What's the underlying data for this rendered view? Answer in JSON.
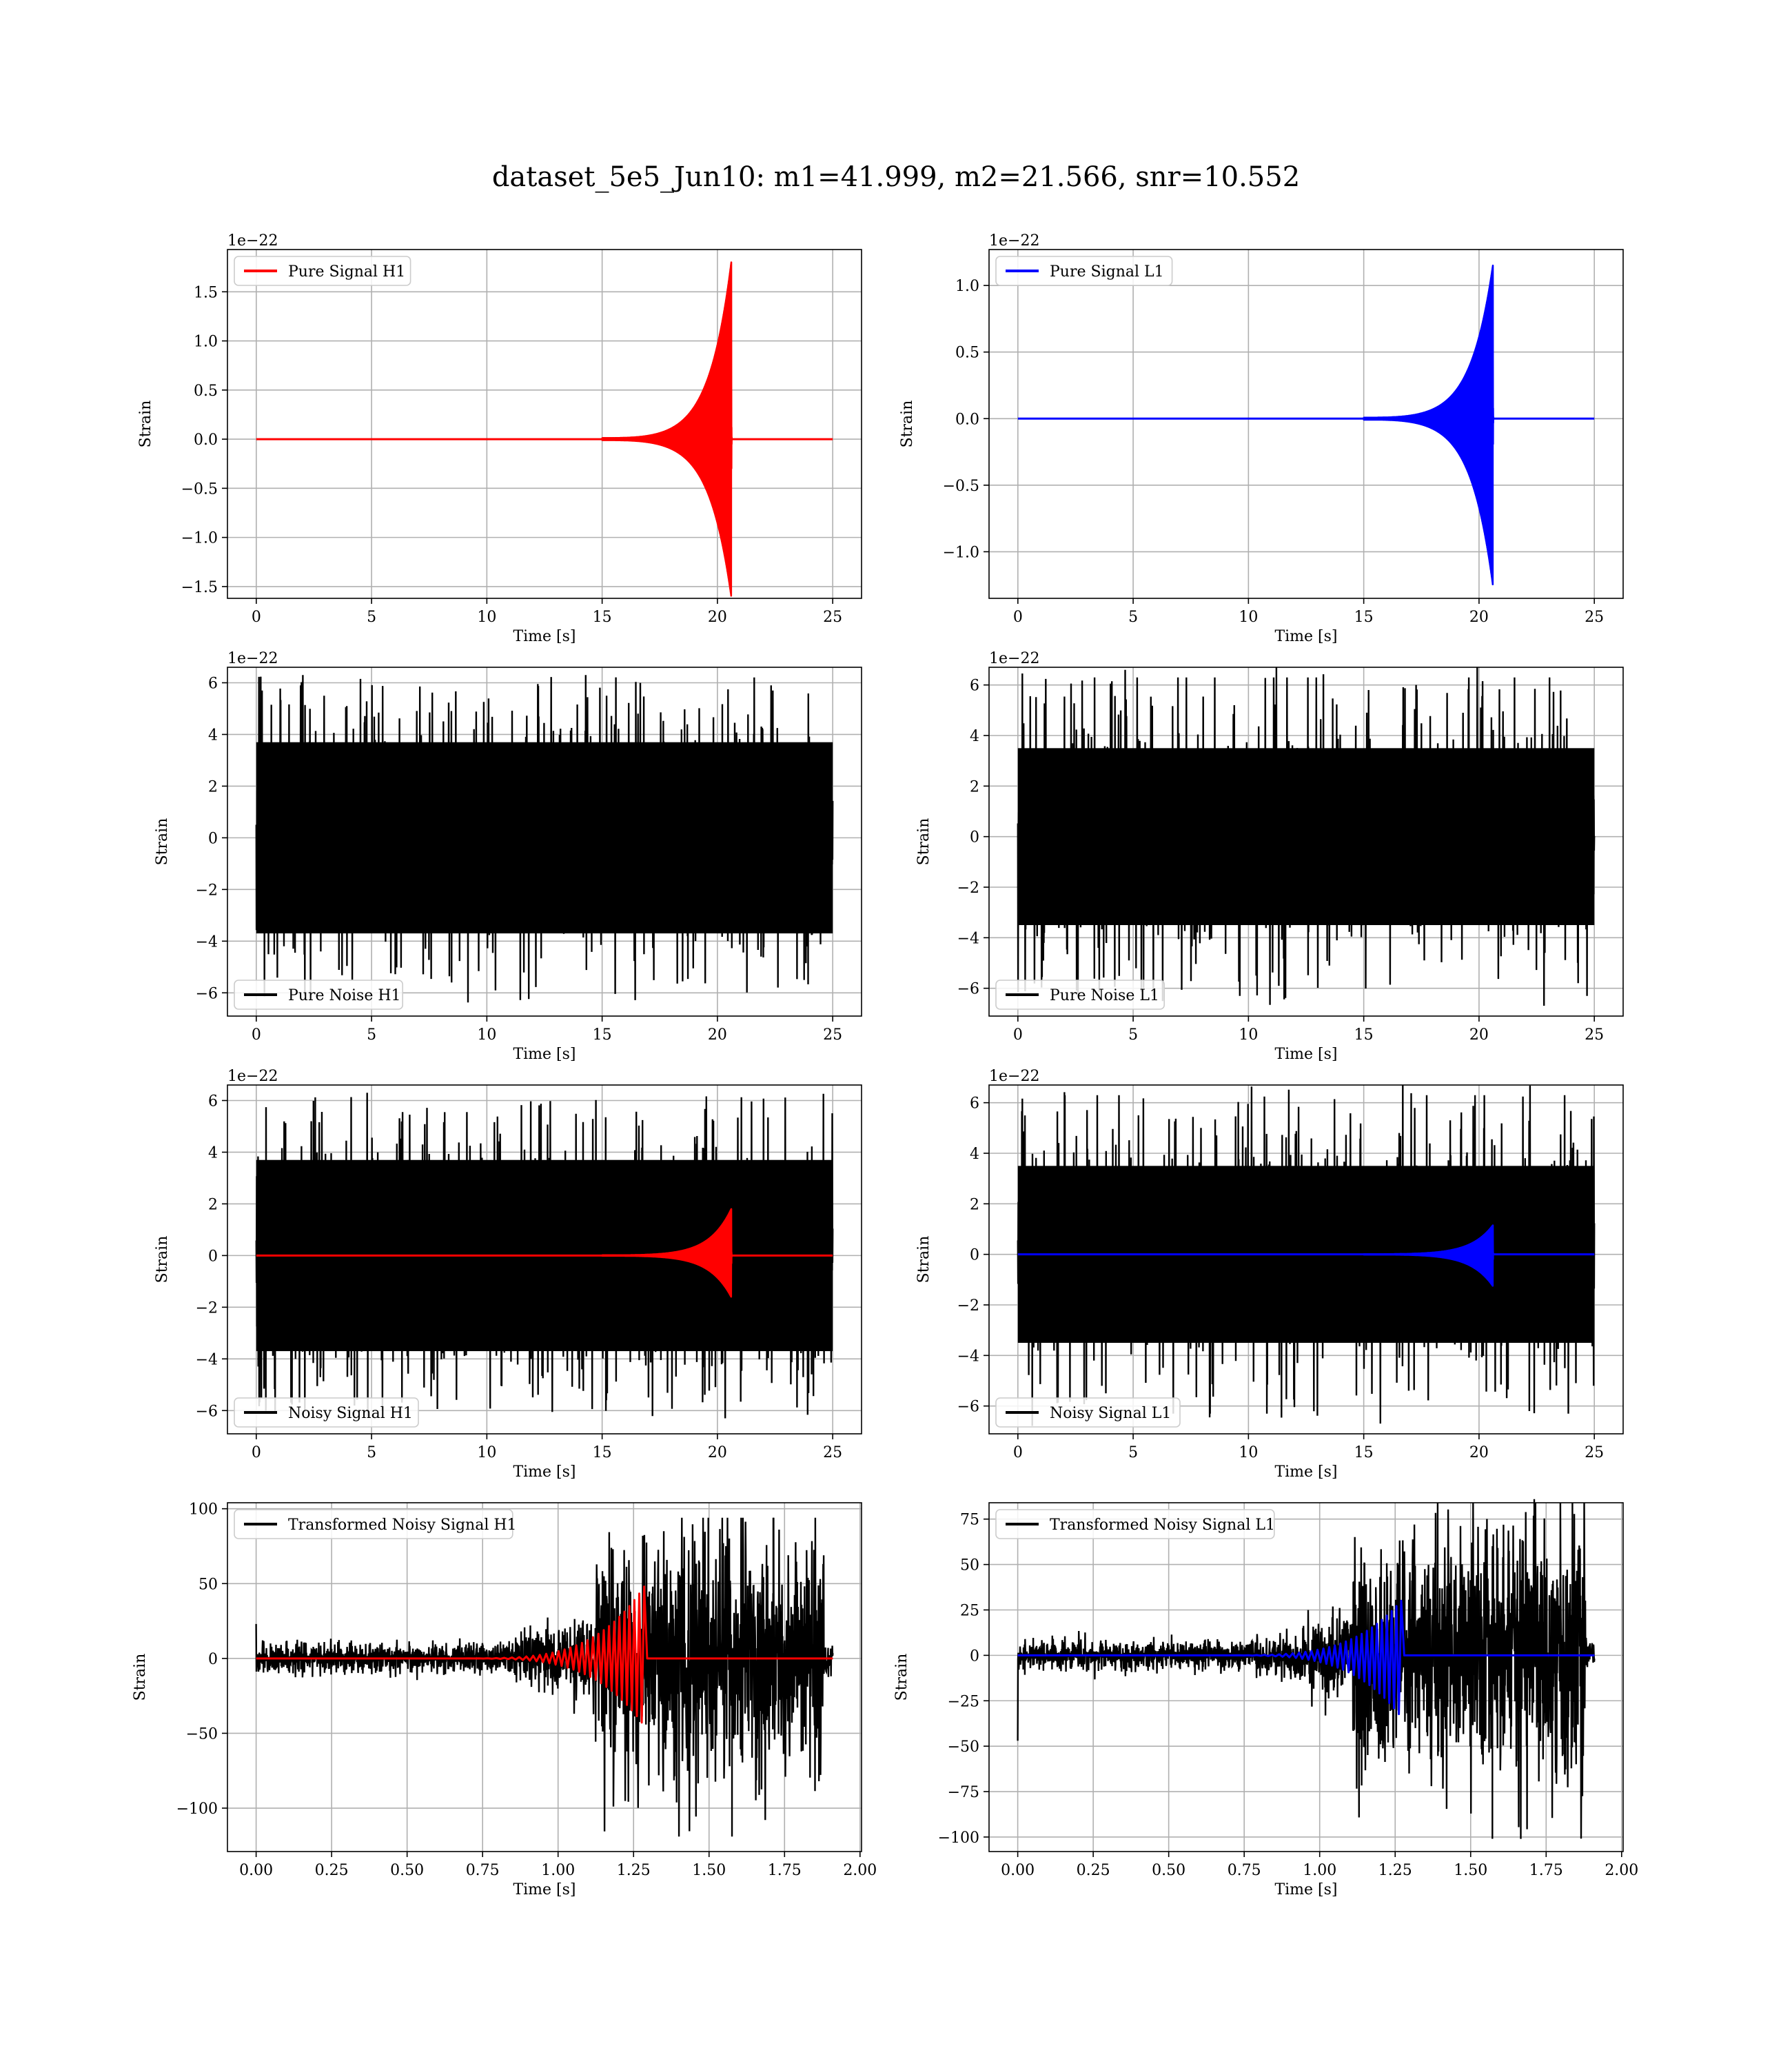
{
  "figure_title": "dataset_5e5_Jun10: m1=41.999, m2=21.566, snr=10.552",
  "colors": {
    "h1_signal": "#ff0000",
    "l1_signal": "#0000ff",
    "noise": "#000000"
  },
  "chart_data": [
    {
      "type": "line",
      "id": "pure-signal-h1",
      "xlabel": "Time [s]",
      "ylabel": "Strain",
      "offset_text": "1e−22",
      "xlim": [
        -1.25,
        26.25
      ],
      "ylim": [
        -1.62,
        1.93
      ],
      "xticks": [
        0,
        5,
        10,
        15,
        20,
        25
      ],
      "xtick_labels": [
        "0",
        "5",
        "10",
        "15",
        "20",
        "25"
      ],
      "yticks": [
        -1.5,
        -1.0,
        -0.5,
        0.0,
        0.5,
        1.0,
        1.5
      ],
      "ytick_labels": [
        "−1.5",
        "−1.0",
        "−0.5",
        "0.0",
        "0.5",
        "1.0",
        "1.5"
      ],
      "grid": true,
      "legend_position": "upper-left",
      "series": [
        {
          "name": "Pure Signal H1",
          "kind": "chirp",
          "color": "#ff0000",
          "x_range": [
            0,
            25
          ],
          "merger_time": 20.6,
          "peak_max": 1.8,
          "peak_min": -1.6,
          "onset_time": 15.0
        }
      ]
    },
    {
      "type": "line",
      "id": "pure-signal-l1",
      "xlabel": "Time [s]",
      "ylabel": "Strain",
      "offset_text": "1e−22",
      "xlim": [
        -1.25,
        26.25
      ],
      "ylim": [
        -1.35,
        1.27
      ],
      "xticks": [
        0,
        5,
        10,
        15,
        20,
        25
      ],
      "xtick_labels": [
        "0",
        "5",
        "10",
        "15",
        "20",
        "25"
      ],
      "yticks": [
        -1.0,
        -0.5,
        0.0,
        0.5,
        1.0
      ],
      "ytick_labels": [
        "−1.0",
        "−0.5",
        "0.0",
        "0.5",
        "1.0"
      ],
      "grid": true,
      "legend_position": "upper-left",
      "series": [
        {
          "name": "Pure Signal L1",
          "kind": "chirp",
          "color": "#0000ff",
          "x_range": [
            0,
            25
          ],
          "merger_time": 20.6,
          "peak_max": 1.15,
          "peak_min": -1.25,
          "onset_time": 15.0
        }
      ]
    },
    {
      "type": "line",
      "id": "pure-noise-h1",
      "xlabel": "Time [s]",
      "ylabel": "Strain",
      "offset_text": "1e−22",
      "xlim": [
        -1.25,
        26.25
      ],
      "ylim": [
        -6.9,
        6.6
      ],
      "xticks": [
        0,
        5,
        10,
        15,
        20,
        25
      ],
      "xtick_labels": [
        "0",
        "5",
        "10",
        "15",
        "20",
        "25"
      ],
      "yticks": [
        -6,
        -4,
        -2,
        0,
        2,
        4,
        6
      ],
      "ytick_labels": [
        "−6",
        "−4",
        "−2",
        "0",
        "2",
        "4",
        "6"
      ],
      "grid": true,
      "legend_position": "lower-left",
      "series": [
        {
          "name": "Pure Noise H1",
          "kind": "noise",
          "color": "#000000",
          "x_range": [
            0,
            25
          ],
          "band": 3.7,
          "spike_max": 6.3,
          "spike_min": -6.4
        }
      ]
    },
    {
      "type": "line",
      "id": "pure-noise-l1",
      "xlabel": "Time [s]",
      "ylabel": "Strain",
      "offset_text": "1e−22",
      "xlim": [
        -1.25,
        26.25
      ],
      "ylim": [
        -7.1,
        6.7
      ],
      "xticks": [
        0,
        5,
        10,
        15,
        20,
        25
      ],
      "xtick_labels": [
        "0",
        "5",
        "10",
        "15",
        "20",
        "25"
      ],
      "yticks": [
        -6,
        -4,
        -2,
        0,
        2,
        4,
        6
      ],
      "ytick_labels": [
        "−6",
        "−4",
        "−2",
        "0",
        "2",
        "4",
        "6"
      ],
      "grid": true,
      "legend_position": "lower-left",
      "series": [
        {
          "name": "Pure Noise L1",
          "kind": "noise",
          "color": "#000000",
          "x_range": [
            0,
            25
          ],
          "band": 3.5,
          "spike_max": 6.3,
          "spike_min": -6.8
        }
      ]
    },
    {
      "type": "line",
      "id": "noisy-signal-h1",
      "xlabel": "Time [s]",
      "ylabel": "Strain",
      "offset_text": "1e−22",
      "xlim": [
        -1.25,
        26.25
      ],
      "ylim": [
        -6.9,
        6.6
      ],
      "xticks": [
        0,
        5,
        10,
        15,
        20,
        25
      ],
      "xtick_labels": [
        "0",
        "5",
        "10",
        "15",
        "20",
        "25"
      ],
      "yticks": [
        -6,
        -4,
        -2,
        0,
        2,
        4,
        6
      ],
      "ytick_labels": [
        "−6",
        "−4",
        "−2",
        "0",
        "2",
        "4",
        "6"
      ],
      "grid": true,
      "legend_position": "lower-left",
      "series": [
        {
          "name": "Noisy Signal H1",
          "kind": "noise",
          "color": "#000000",
          "x_range": [
            0,
            25
          ],
          "band": 3.7,
          "spike_max": 6.3,
          "spike_min": -6.4
        },
        {
          "name": "",
          "kind": "chirp",
          "color": "#ff0000",
          "x_range": [
            0,
            25
          ],
          "merger_time": 20.6,
          "peak_max": 1.8,
          "peak_min": -1.6,
          "onset_time": 15.0
        }
      ]
    },
    {
      "type": "line",
      "id": "noisy-signal-l1",
      "xlabel": "Time [s]",
      "ylabel": "Strain",
      "offset_text": "1e−22",
      "xlim": [
        -1.25,
        26.25
      ],
      "ylim": [
        -7.1,
        6.7
      ],
      "xticks": [
        0,
        5,
        10,
        15,
        20,
        25
      ],
      "xtick_labels": [
        "0",
        "5",
        "10",
        "15",
        "20",
        "25"
      ],
      "yticks": [
        -6,
        -4,
        -2,
        0,
        2,
        4,
        6
      ],
      "ytick_labels": [
        "−6",
        "−4",
        "−2",
        "0",
        "2",
        "4",
        "6"
      ],
      "grid": true,
      "legend_position": "lower-left",
      "series": [
        {
          "name": "Noisy Signal L1",
          "kind": "noise",
          "color": "#000000",
          "x_range": [
            0,
            25
          ],
          "band": 3.5,
          "spike_max": 6.3,
          "spike_min": -6.8
        },
        {
          "name": "",
          "kind": "chirp",
          "color": "#0000ff",
          "x_range": [
            0,
            25
          ],
          "merger_time": 20.6,
          "peak_max": 1.15,
          "peak_min": -1.25,
          "onset_time": 15.0
        }
      ]
    },
    {
      "type": "line",
      "id": "transformed-noisy-signal-h1",
      "xlabel": "Time [s]",
      "ylabel": "Strain",
      "offset_text": "",
      "xlim": [
        -0.095,
        2.005
      ],
      "ylim": [
        -129,
        104
      ],
      "xticks": [
        0,
        0.25,
        0.5,
        0.75,
        1.0,
        1.25,
        1.5,
        1.75,
        2.0
      ],
      "xtick_labels": [
        "0.00",
        "0.25",
        "0.50",
        "0.75",
        "1.00",
        "1.25",
        "1.50",
        "1.75",
        "2.00"
      ],
      "yticks": [
        -100,
        -50,
        0,
        50,
        100
      ],
      "ytick_labels": [
        "−100",
        "−50",
        "0",
        "50",
        "100"
      ],
      "grid": true,
      "legend_position": "upper-left",
      "series": [
        {
          "name": "Transformed Noisy Signal H1",
          "kind": "whitened",
          "color": "#000000",
          "x_range": [
            0,
            1.91
          ],
          "quiet_level": 5,
          "loud_start": 1.12,
          "loud_end": 1.88,
          "loud_band": 35,
          "spike_max": 94,
          "spike_min": -119,
          "start_spike": 23
        },
        {
          "name": "",
          "kind": "chirp",
          "color": "#ff0000",
          "x_range": [
            0,
            1.91
          ],
          "merger_time": 1.285,
          "peak_max": 48,
          "peak_min": -45,
          "onset_time": 0.6
        }
      ]
    },
    {
      "type": "line",
      "id": "transformed-noisy-signal-l1",
      "xlabel": "Time [s]",
      "ylabel": "Strain",
      "offset_text": "",
      "xlim": [
        -0.095,
        2.005
      ],
      "ylim": [
        -108,
        84
      ],
      "xticks": [
        0,
        0.25,
        0.5,
        0.75,
        1.0,
        1.25,
        1.5,
        1.75,
        2.0
      ],
      "xtick_labels": [
        "0.00",
        "0.25",
        "0.50",
        "0.75",
        "1.00",
        "1.25",
        "1.50",
        "1.75",
        "2.00"
      ],
      "yticks": [
        -100,
        -75,
        -50,
        -25,
        0,
        25,
        50,
        75
      ],
      "ytick_labels": [
        "−100",
        "−75",
        "−50",
        "−25",
        "0",
        "25",
        "50",
        "75"
      ],
      "grid": true,
      "legend_position": "upper-left",
      "series": [
        {
          "name": "Transformed Noisy Signal L1",
          "kind": "whitened",
          "color": "#000000",
          "x_range": [
            0,
            1.91
          ],
          "quiet_level": 4,
          "loud_start": 1.11,
          "loud_end": 1.88,
          "loud_band": 30,
          "spike_max": 86,
          "spike_min": -101,
          "start_spike": -47
        },
        {
          "name": "",
          "kind": "chirp",
          "color": "#0000ff",
          "x_range": [
            0,
            1.91
          ],
          "merger_time": 1.27,
          "peak_max": 30,
          "peak_min": -34,
          "onset_time": 0.6
        }
      ]
    }
  ]
}
